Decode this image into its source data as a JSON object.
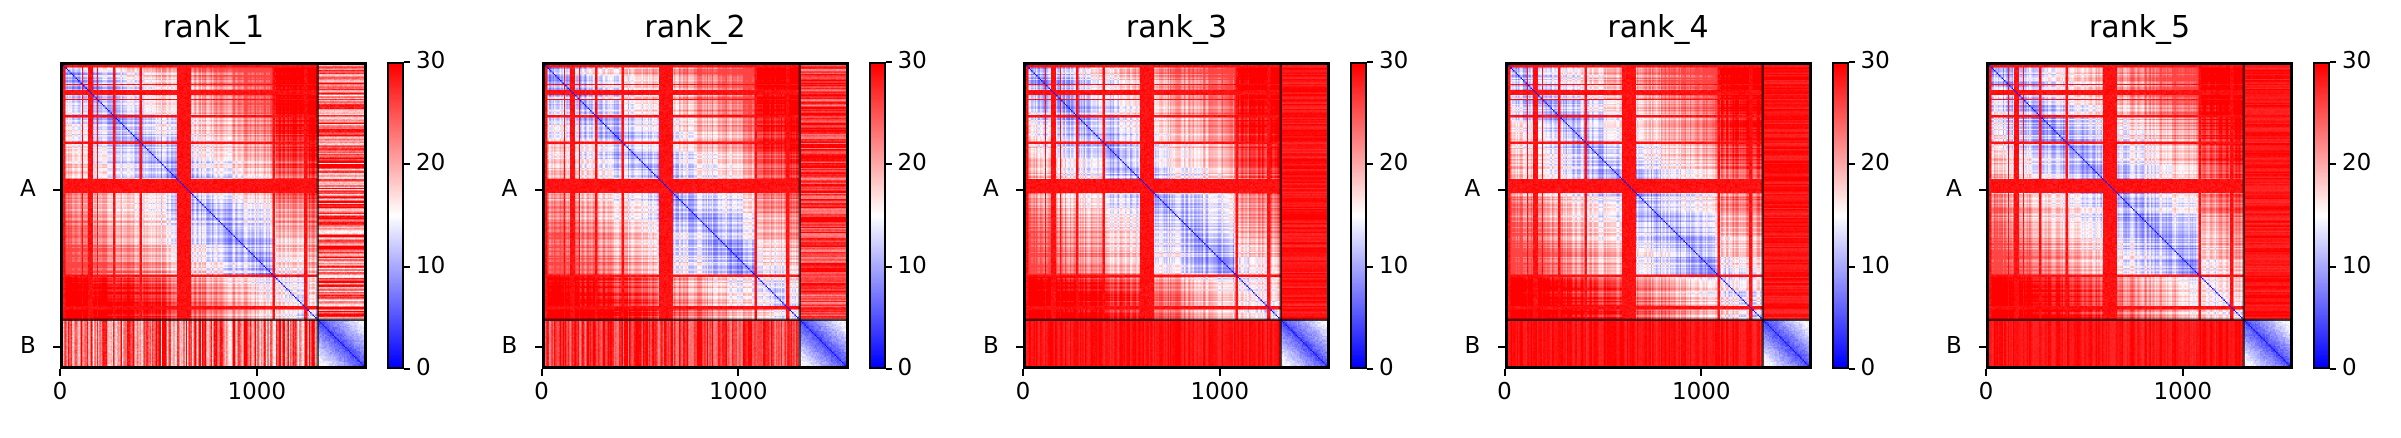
{
  "chart_data": [
    {
      "type": "heatmap",
      "title": "rank_1",
      "x_ticks": [
        {
          "value": 0,
          "label": "0"
        },
        {
          "value": 1000,
          "label": "1000"
        }
      ],
      "y_ticks": [
        {
          "value": 650,
          "label": "A"
        },
        {
          "value": 1450,
          "label": "B"
        }
      ],
      "xlim": [
        0,
        1560
      ],
      "ylim": [
        1560,
        0
      ],
      "chain_boundary": 1320,
      "inter_chain_level": "mixed",
      "colorbar": {
        "min": 0,
        "max": 30,
        "ticks": [
          0,
          10,
          20,
          30
        ]
      }
    },
    {
      "type": "heatmap",
      "title": "rank_2",
      "x_ticks": [
        {
          "value": 0,
          "label": "0"
        },
        {
          "value": 1000,
          "label": "1000"
        }
      ],
      "y_ticks": [
        {
          "value": 650,
          "label": "A"
        },
        {
          "value": 1450,
          "label": "B"
        }
      ],
      "xlim": [
        0,
        1560
      ],
      "ylim": [
        1560,
        0
      ],
      "chain_boundary": 1320,
      "inter_chain_level": "mostly high",
      "colorbar": {
        "min": 0,
        "max": 30,
        "ticks": [
          0,
          10,
          20,
          30
        ]
      }
    },
    {
      "type": "heatmap",
      "title": "rank_3",
      "x_ticks": [
        {
          "value": 0,
          "label": "0"
        },
        {
          "value": 1000,
          "label": "1000"
        }
      ],
      "y_ticks": [
        {
          "value": 650,
          "label": "A"
        },
        {
          "value": 1450,
          "label": "B"
        }
      ],
      "xlim": [
        0,
        1560
      ],
      "ylim": [
        1560,
        0
      ],
      "chain_boundary": 1320,
      "inter_chain_level": "high",
      "colorbar": {
        "min": 0,
        "max": 30,
        "ticks": [
          0,
          10,
          20,
          30
        ]
      }
    },
    {
      "type": "heatmap",
      "title": "rank_4",
      "x_ticks": [
        {
          "value": 0,
          "label": "0"
        },
        {
          "value": 1000,
          "label": "1000"
        }
      ],
      "y_ticks": [
        {
          "value": 650,
          "label": "A"
        },
        {
          "value": 1450,
          "label": "B"
        }
      ],
      "xlim": [
        0,
        1560
      ],
      "ylim": [
        1560,
        0
      ],
      "chain_boundary": 1320,
      "inter_chain_level": "high",
      "colorbar": {
        "min": 0,
        "max": 30,
        "ticks": [
          0,
          10,
          20,
          30
        ]
      }
    },
    {
      "type": "heatmap",
      "title": "rank_5",
      "x_ticks": [
        {
          "value": 0,
          "label": "0"
        },
        {
          "value": 1000,
          "label": "1000"
        }
      ],
      "y_ticks": [
        {
          "value": 650,
          "label": "A"
        },
        {
          "value": 1450,
          "label": "B"
        }
      ],
      "xlim": [
        0,
        1560
      ],
      "ylim": [
        1560,
        0
      ],
      "chain_boundary": 1320,
      "inter_chain_level": "high",
      "colorbar": {
        "min": 0,
        "max": 30,
        "ticks": [
          0,
          10,
          20,
          30
        ]
      }
    }
  ],
  "colors": {
    "low": "#0000ff",
    "mid": "#ffffff",
    "high": "#ff0000",
    "frame": "#000000"
  }
}
